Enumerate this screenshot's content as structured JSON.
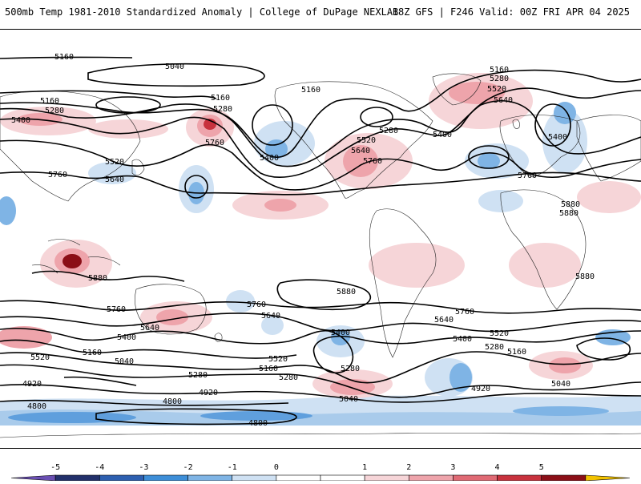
{
  "header": {
    "title": "500mb Temp 1981-2010 Standardized Anomaly | College of DuPage NEXLAB",
    "run_info": "18Z GFS | F246 Valid: 00Z FRI APR 04 2025"
  },
  "colorbar": {
    "tick_labels": [
      "-5",
      "-4",
      "-3",
      "-2",
      "-1",
      "0",
      "1",
      "2",
      "3",
      "4",
      "5"
    ],
    "colors": [
      "#6a4fb3",
      "#22306b",
      "#2d5fb0",
      "#3d8ed8",
      "#7fb4e5",
      "#cfe1f3",
      "#ffffff",
      "#ffffff",
      "#f6d5d8",
      "#eea4ab",
      "#e06a74",
      "#c8323d",
      "#8b0f17",
      "#f2c200"
    ]
  },
  "contour_labels": {
    "c1": "5160",
    "c2": "5040",
    "c3": "5160",
    "c4": "5280",
    "c5": "5520",
    "c6": "5640",
    "c7": "5160",
    "c8": "5280",
    "c9": "5400",
    "c10": "5160",
    "c11": "5280",
    "c12": "5760",
    "c13": "5160",
    "c14": "5520",
    "c15": "5640",
    "c16": "5760",
    "c17": "5280",
    "c18": "5400",
    "c19": "5400",
    "c20": "5520",
    "c21": "5640",
    "c22": "5760",
    "c23": "5760",
    "c24": "5880",
    "c25": "5880",
    "c26": "5880",
    "c27": "5880",
    "c28": "5880",
    "c29": "5760",
    "c30": "5760",
    "c31": "5640",
    "c32": "5640",
    "c33": "5760",
    "c34": "5640",
    "c35": "5400",
    "c36": "5520",
    "c37": "5160",
    "c38": "5040",
    "c39": "5520",
    "c40": "5160",
    "c41": "5280",
    "c42": "5400",
    "c43": "5280",
    "c44": "5040",
    "c45": "5400",
    "c46": "5280",
    "c47": "5160",
    "c48": "5520",
    "c49": "5040",
    "c50": "4920",
    "c51": "4920",
    "c52": "4800",
    "c53": "4800",
    "c54": "4920",
    "c55": "4800",
    "c56": "5400",
    "c57": "5280"
  }
}
